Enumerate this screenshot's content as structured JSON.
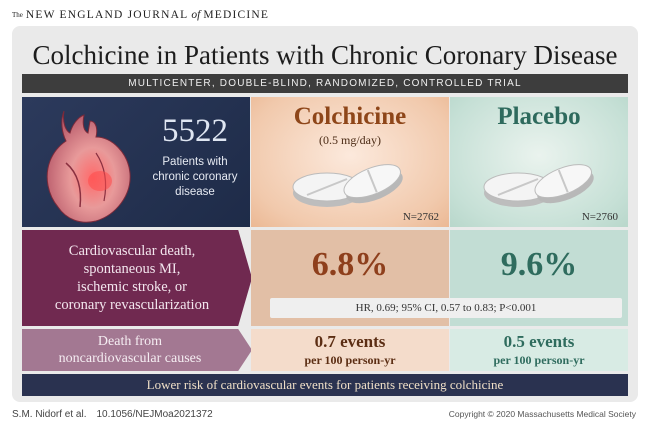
{
  "header": {
    "journal_the": "The",
    "journal_main": "NEW ENGLAND JOURNAL",
    "journal_of": "of",
    "journal_end": "MEDICINE"
  },
  "title": "Colchicine in Patients with Chronic Coronary Disease",
  "subtitle": "MULTICENTER, DOUBLE-BLIND, RANDOMIZED, CONTROLLED TRIAL",
  "population": {
    "count": "5522",
    "line1": "Patients with",
    "line2": "chronic coronary",
    "line3": "disease"
  },
  "arms": {
    "colchicine": {
      "name": "Colchicine",
      "dose": "(0.5 mg/day)",
      "n": "N=2762",
      "color": "#8e4619"
    },
    "placebo": {
      "name": "Placebo",
      "n": "N=2760",
      "color": "#2e6a5d"
    }
  },
  "outcomes": {
    "primary": {
      "label_lines": [
        "Cardiovascular death,",
        "spontaneous MI,",
        "ischemic stroke,  or",
        "coronary revascularization"
      ],
      "colchicine": "6.8%",
      "placebo": "9.6%",
      "stats": "HR, 0.69; 95% CI, 0.57 to 0.83; P<0.001"
    },
    "noncardio": {
      "label_lines": [
        "Death from",
        "noncardiovascular causes"
      ],
      "colchicine_events": "0.7 events",
      "placebo_events": "0.5 events",
      "per": "per 100 person-yr"
    }
  },
  "conclusion": "Lower risk of cardiovascular events for patients receiving colchicine",
  "footer": {
    "authors": "S.M. Nidorf et al.",
    "doi": "10.1056/NEJMoa2021372",
    "copyright": "Copyright © 2020 Massachusetts Medical Society"
  }
}
